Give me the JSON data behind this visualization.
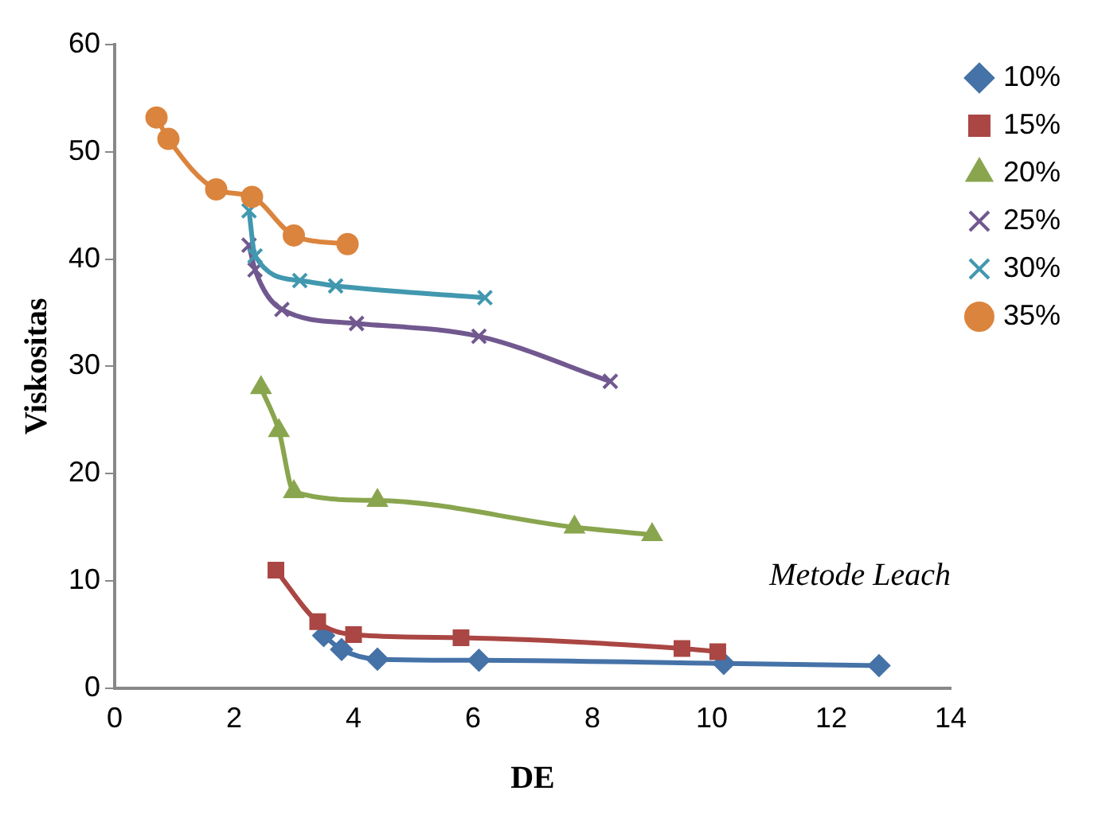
{
  "chart_data": {
    "type": "line",
    "xlabel": "DE",
    "ylabel": "Viskositas",
    "xlim": [
      0,
      14
    ],
    "xticks": [
      0,
      2,
      4,
      6,
      8,
      10,
      12,
      14
    ],
    "ylim": [
      0,
      60
    ],
    "yticks": [
      0,
      10,
      20,
      30,
      40,
      50,
      60
    ],
    "grid": false,
    "legend": "right",
    "line_style": "solid",
    "annotations": [
      "Metode Leach"
    ],
    "series": [
      {
        "name": "10%",
        "color": "#4572a7",
        "marker": "diamond",
        "x": [
          3.5,
          3.8,
          4.4,
          6.1,
          10.2,
          12.8
        ],
        "values": [
          4.9,
          3.6,
          2.7,
          2.6,
          2.3,
          2.1
        ]
      },
      {
        "name": "15%",
        "color": "#aa4643",
        "marker": "square",
        "x": [
          2.7,
          3.4,
          4.0,
          5.8,
          9.5,
          10.1
        ],
        "values": [
          11,
          6.2,
          5.0,
          4.7,
          3.7,
          3.4
        ]
      },
      {
        "name": "20%",
        "color": "#89a54e",
        "marker": "triangle",
        "x": [
          2.45,
          2.75,
          3.0,
          4.4,
          7.7,
          9.0
        ],
        "values": [
          28,
          24,
          18.3,
          17.5,
          15,
          14.3
        ]
      },
      {
        "name": "25%",
        "color": "#71588f",
        "marker": "cross",
        "x": [
          2.25,
          2.35,
          2.8,
          4.05,
          6.1,
          8.3
        ],
        "values": [
          41.3,
          39,
          35.3,
          34,
          32.8,
          28.6
        ]
      },
      {
        "name": "30%",
        "color": "#4198af",
        "marker": "cross",
        "x": [
          2.25,
          2.35,
          3.1,
          3.7,
          6.2
        ],
        "values": [
          44.5,
          40.3,
          38,
          37.5,
          36.4
        ]
      },
      {
        "name": "35%",
        "color": "#db843d",
        "marker": "circle",
        "x": [
          0.7,
          0.9,
          1.7,
          2.3,
          3.0,
          3.9
        ],
        "values": [
          53.2,
          51.2,
          46.5,
          45.8,
          42.2,
          41.4
        ]
      }
    ]
  }
}
